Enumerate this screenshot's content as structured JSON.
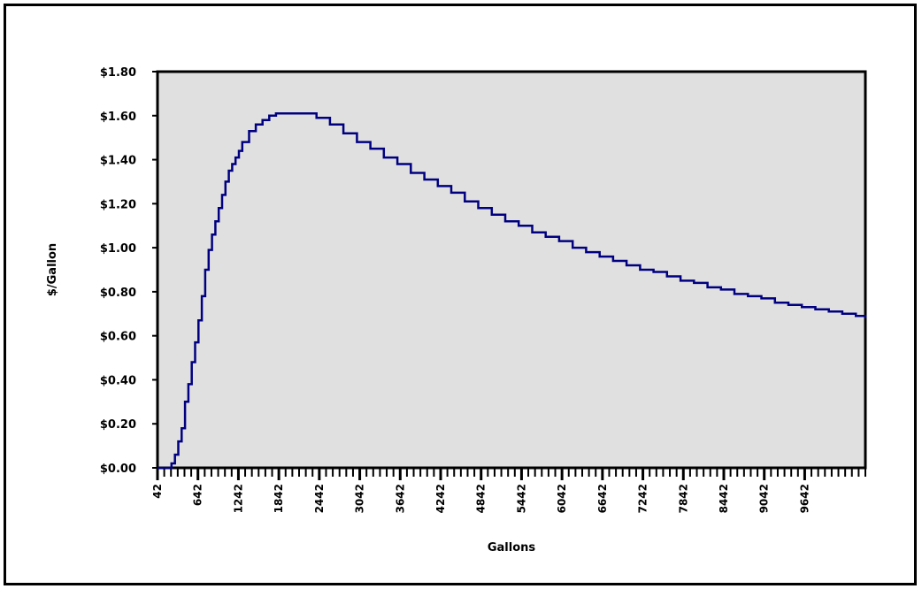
{
  "chart_data": {
    "type": "line",
    "xlabel": "Gallons",
    "ylabel": "$/Gallon",
    "xlim": [
      42,
      10542
    ],
    "ylim": [
      0,
      1.8
    ],
    "yticks": [
      0,
      0.2,
      0.4,
      0.6,
      0.8,
      1.0,
      1.2,
      1.4,
      1.6,
      1.8
    ],
    "ytick_labels": [
      "$0.00",
      "$0.20",
      "$0.40",
      "$0.60",
      "$0.80",
      "$1.00",
      "$1.20",
      "$1.40",
      "$1.60",
      "$1.80"
    ],
    "xticks": [
      42,
      642,
      1242,
      1842,
      2442,
      3042,
      3642,
      4242,
      4842,
      5442,
      6042,
      6642,
      7242,
      7842,
      8442,
      9042,
      9642
    ],
    "xtick_labels": [
      "42",
      "642",
      "1242",
      "1842",
      "2442",
      "3042",
      "3642",
      "4242",
      "4842",
      "5442",
      "6042",
      "6642",
      "7242",
      "7842",
      "8442",
      "9042",
      "9642"
    ],
    "grid": false,
    "legend": "none",
    "plot_background": "#e0e0e0",
    "series": [
      {
        "color": "#000080",
        "x": [
          42,
          200,
          250,
          300,
          350,
          400,
          450,
          500,
          550,
          600,
          650,
          700,
          750,
          800,
          850,
          900,
          950,
          1000,
          1050,
          1100,
          1150,
          1200,
          1250,
          1300,
          1400,
          1500,
          1600,
          1700,
          1800,
          2000,
          2200,
          2400,
          2600,
          2800,
          3000,
          3200,
          3400,
          3600,
          3800,
          4000,
          4200,
          4400,
          4600,
          4800,
          5000,
          5200,
          5400,
          5600,
          5800,
          6000,
          6200,
          6400,
          6600,
          6800,
          7000,
          7200,
          7400,
          7600,
          7800,
          8000,
          8200,
          8400,
          8600,
          8800,
          9000,
          9200,
          9400,
          9600,
          9800,
          10000,
          10200,
          10400,
          10542
        ],
        "y": [
          0,
          0,
          0.02,
          0.06,
          0.12,
          0.18,
          0.3,
          0.38,
          0.48,
          0.57,
          0.67,
          0.78,
          0.9,
          0.99,
          1.06,
          1.12,
          1.18,
          1.24,
          1.3,
          1.35,
          1.38,
          1.41,
          1.44,
          1.48,
          1.53,
          1.56,
          1.58,
          1.6,
          1.61,
          1.61,
          1.61,
          1.59,
          1.56,
          1.52,
          1.48,
          1.45,
          1.41,
          1.38,
          1.34,
          1.31,
          1.28,
          1.25,
          1.21,
          1.18,
          1.15,
          1.12,
          1.1,
          1.07,
          1.05,
          1.03,
          1.0,
          0.98,
          0.96,
          0.94,
          0.92,
          0.9,
          0.89,
          0.87,
          0.85,
          0.84,
          0.82,
          0.81,
          0.79,
          0.78,
          0.77,
          0.75,
          0.74,
          0.73,
          0.72,
          0.71,
          0.7,
          0.69,
          0.68
        ]
      }
    ]
  }
}
